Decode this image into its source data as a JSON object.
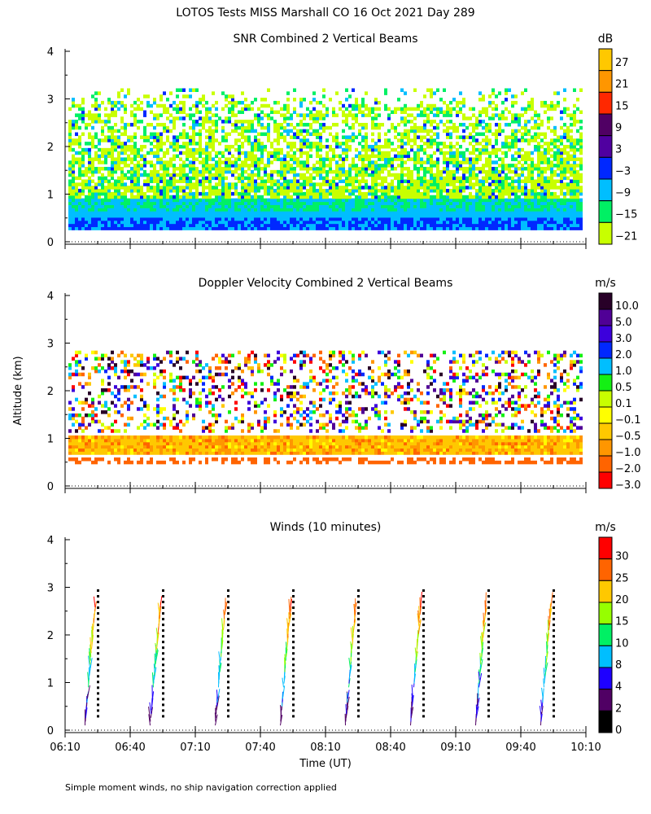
{
  "title": "LOTOS Tests MISS Marshall CO  16 Oct 2021 Day 289",
  "footnote": "Simple moment winds, no ship navigation correction applied",
  "chart_data": [
    {
      "type": "heatmap",
      "title": "SNR Combined 2 Vertical Beams",
      "ylabel": "Altitude (km)",
      "ylim": [
        0,
        4
      ],
      "yticks": [
        "0",
        "1",
        "2",
        "3",
        "4"
      ],
      "xlim": [
        "06:10",
        "10:10"
      ],
      "colorbar": {
        "unit": "dB",
        "labels": [
          "27",
          "21",
          "15",
          "9",
          "3",
          "-3",
          "-9",
          "-15",
          "-21"
        ],
        "colors": [
          "#ffc800",
          "#ff9600",
          "#ff2800",
          "#500064",
          "#5000a0",
          "#0028ff",
          "#00beff",
          "#00f064",
          "#c8ff00"
        ]
      }
    },
    {
      "type": "heatmap",
      "title": "Doppler Velocity Combined 2 Vertical Beams",
      "ylabel": "Altitude (km)",
      "ylim": [
        0,
        4
      ],
      "yticks": [
        "0",
        "1",
        "2",
        "3",
        "4"
      ],
      "xlim": [
        "06:10",
        "10:10"
      ],
      "colorbar": {
        "unit": "m/s",
        "labels": [
          "10.0",
          "5.0",
          "3.0",
          "2.0",
          "1.0",
          "0.5",
          "0.1",
          "-0.1",
          "-0.5",
          "-1.0",
          "-2.0",
          "-3.0"
        ],
        "colors": [
          "#280028",
          "#500096",
          "#3c00dc",
          "#0028ff",
          "#00beff",
          "#14f014",
          "#c8ff00",
          "#ffff00",
          "#ffc800",
          "#ff9600",
          "#ff6400",
          "#ff0000"
        ]
      }
    },
    {
      "type": "scatter",
      "title": "Winds (10 minutes)",
      "xlabel": "Time (UT)",
      "ylabel": "Altitude (km)",
      "ylim": [
        0,
        4
      ],
      "yticks": [
        "0",
        "1",
        "2",
        "3",
        "4"
      ],
      "xticks": [
        "06:10",
        "06:40",
        "07:10",
        "07:40",
        "08:10",
        "08:40",
        "09:10",
        "09:40",
        "10:10"
      ],
      "profile_times": [
        "06:25",
        "06:55",
        "07:25",
        "07:55",
        "08:25",
        "08:55",
        "09:25",
        "09:55"
      ],
      "colorbar": {
        "unit": "m/s",
        "labels": [
          "30",
          "25",
          "20",
          "15",
          "10",
          "8",
          "4",
          "2",
          "0"
        ],
        "colors": [
          "#ff0000",
          "#ff6400",
          "#ffc800",
          "#96ff00",
          "#00f064",
          "#00beff",
          "#1e00ff",
          "#500064",
          "#000000"
        ]
      }
    }
  ]
}
